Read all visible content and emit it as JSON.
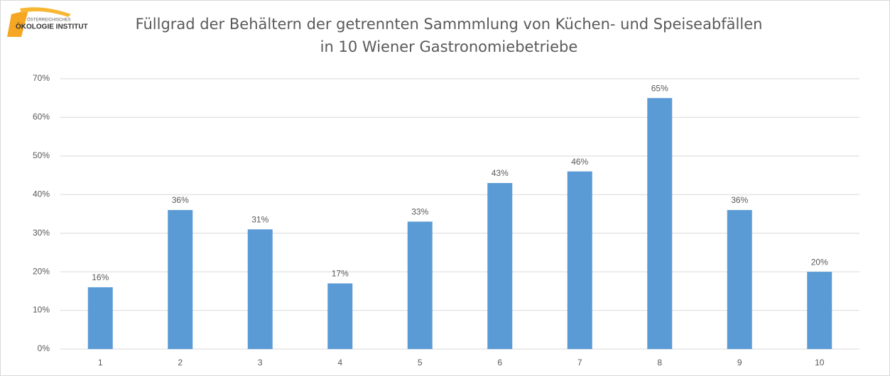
{
  "logo": {
    "line1": "ÖSTERREICHISCHES",
    "line2": "ÖKOLOGIE INSTITUT"
  },
  "chart_data": {
    "type": "bar",
    "title": [
      "Füllgrad der Behältern der getrennten Sammmlung von Küchen- und Speiseabfällen",
      "in 10 Wiener Gastronomiebetriebe"
    ],
    "categories": [
      "1",
      "2",
      "3",
      "4",
      "5",
      "6",
      "7",
      "8",
      "9",
      "10"
    ],
    "values": [
      16,
      36,
      31,
      17,
      33,
      43,
      46,
      65,
      36,
      20
    ],
    "value_labels": [
      "16%",
      "36%",
      "31%",
      "17%",
      "33%",
      "43%",
      "46%",
      "65%",
      "36%",
      "20%"
    ],
    "color": "#5b9bd5",
    "ylim": [
      0,
      70
    ],
    "yticks": [
      {
        "value": 0,
        "label": "0%"
      },
      {
        "value": 10,
        "label": "10%"
      },
      {
        "value": 20,
        "label": "20%"
      },
      {
        "value": 30,
        "label": "30%"
      },
      {
        "value": 40,
        "label": "40%"
      },
      {
        "value": 50,
        "label": "50%"
      },
      {
        "value": 60,
        "label": "60%"
      },
      {
        "value": 70,
        "label": "70%"
      }
    ],
    "grid": true
  }
}
